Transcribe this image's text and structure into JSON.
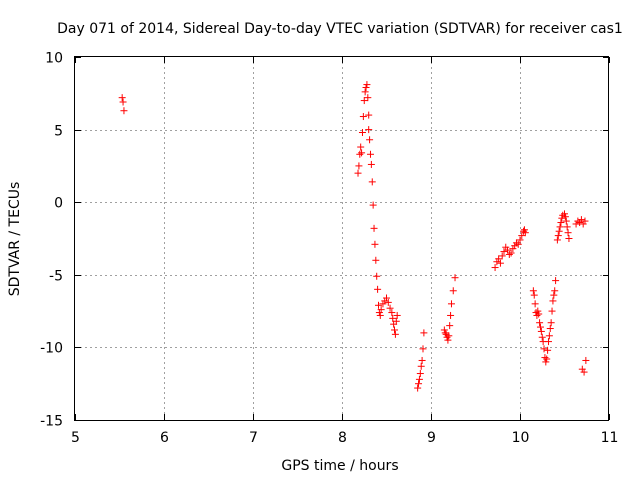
{
  "chart_data": {
    "type": "scatter",
    "title": "Day 071 of 2014, Sidereal Day-to-day VTEC variation (SDTVAR) for receiver cas1",
    "xlabel": "GPS time / hours",
    "ylabel": "SDTVAR / TECUs",
    "xlim": [
      5,
      11
    ],
    "ylim": [
      -15,
      10
    ],
    "xticks": [
      5,
      6,
      7,
      8,
      9,
      10,
      11
    ],
    "yticks": [
      -15,
      -10,
      -5,
      0,
      5,
      10
    ],
    "xtick_labels": [
      "5",
      "6",
      "7",
      "8",
      "9",
      "10",
      "11"
    ],
    "ytick_labels": [
      "-15",
      "-10",
      "-5",
      "0",
      "5",
      "10"
    ],
    "grid": true,
    "marker": "+",
    "color": "#ff0000",
    "series": [
      {
        "name": "cas1",
        "points": [
          [
            5.53,
            7.2
          ],
          [
            5.54,
            6.9
          ],
          [
            5.55,
            6.3
          ],
          [
            8.18,
            2.0
          ],
          [
            8.19,
            2.5
          ],
          [
            8.2,
            3.3
          ],
          [
            8.21,
            3.8
          ],
          [
            8.22,
            3.4
          ],
          [
            8.23,
            4.8
          ],
          [
            8.24,
            5.9
          ],
          [
            8.25,
            7.0
          ],
          [
            8.26,
            7.6
          ],
          [
            8.27,
            7.9
          ],
          [
            8.28,
            8.1
          ],
          [
            8.29,
            7.2
          ],
          [
            8.3,
            6.0
          ],
          [
            8.3,
            5.0
          ],
          [
            8.31,
            4.3
          ],
          [
            8.32,
            3.3
          ],
          [
            8.33,
            2.6
          ],
          [
            8.34,
            1.4
          ],
          [
            8.35,
            -0.2
          ],
          [
            8.36,
            -1.8
          ],
          [
            8.37,
            -2.9
          ],
          [
            8.38,
            -4.0
          ],
          [
            8.39,
            -5.1
          ],
          [
            8.4,
            -6.0
          ],
          [
            8.41,
            -7.1
          ],
          [
            8.42,
            -7.6
          ],
          [
            8.43,
            -7.8
          ],
          [
            8.44,
            -7.4
          ],
          [
            8.46,
            -7.0
          ],
          [
            8.48,
            -6.8
          ],
          [
            8.5,
            -6.6
          ],
          [
            8.52,
            -6.9
          ],
          [
            8.54,
            -7.3
          ],
          [
            8.56,
            -7.6
          ],
          [
            8.57,
            -8.0
          ],
          [
            8.58,
            -8.4
          ],
          [
            8.59,
            -8.8
          ],
          [
            8.6,
            -9.1
          ],
          [
            8.61,
            -8.2
          ],
          [
            8.62,
            -7.8
          ],
          [
            8.85,
            -12.8
          ],
          [
            8.86,
            -12.5
          ],
          [
            8.87,
            -12.2
          ],
          [
            8.88,
            -11.8
          ],
          [
            8.89,
            -11.3
          ],
          [
            8.9,
            -10.9
          ],
          [
            8.91,
            -10.1
          ],
          [
            8.92,
            -9.0
          ],
          [
            9.15,
            -8.8
          ],
          [
            9.16,
            -9.0
          ],
          [
            9.17,
            -9.1
          ],
          [
            9.18,
            -9.3
          ],
          [
            9.19,
            -9.5
          ],
          [
            9.2,
            -9.2
          ],
          [
            9.21,
            -8.5
          ],
          [
            9.22,
            -7.8
          ],
          [
            9.23,
            -7.0
          ],
          [
            9.25,
            -6.1
          ],
          [
            9.27,
            -5.2
          ],
          [
            9.72,
            -4.5
          ],
          [
            9.74,
            -4.1
          ],
          [
            9.76,
            -3.9
          ],
          [
            9.78,
            -4.2
          ],
          [
            9.8,
            -3.7
          ],
          [
            9.82,
            -3.4
          ],
          [
            9.84,
            -3.1
          ],
          [
            9.86,
            -3.3
          ],
          [
            9.88,
            -3.6
          ],
          [
            9.9,
            -3.5
          ],
          [
            9.92,
            -3.2
          ],
          [
            9.94,
            -3.0
          ],
          [
            9.96,
            -2.8
          ],
          [
            9.98,
            -2.9
          ],
          [
            10.0,
            -2.6
          ],
          [
            10.02,
            -2.3
          ],
          [
            10.04,
            -2.0
          ],
          [
            10.05,
            -1.9
          ],
          [
            10.06,
            -2.1
          ],
          [
            10.15,
            -6.1
          ],
          [
            10.16,
            -6.4
          ],
          [
            10.17,
            -7.0
          ],
          [
            10.18,
            -7.6
          ],
          [
            10.19,
            -7.8
          ],
          [
            10.2,
            -7.5
          ],
          [
            10.21,
            -7.7
          ],
          [
            10.22,
            -8.3
          ],
          [
            10.23,
            -8.6
          ],
          [
            10.24,
            -8.9
          ],
          [
            10.25,
            -9.3
          ],
          [
            10.26,
            -9.6
          ],
          [
            10.27,
            -10.1
          ],
          [
            10.28,
            -10.7
          ],
          [
            10.29,
            -11.0
          ],
          [
            10.3,
            -10.8
          ],
          [
            10.31,
            -10.2
          ],
          [
            10.32,
            -9.6
          ],
          [
            10.33,
            -9.2
          ],
          [
            10.34,
            -8.7
          ],
          [
            10.35,
            -8.3
          ],
          [
            10.36,
            -7.5
          ],
          [
            10.37,
            -6.8
          ],
          [
            10.38,
            -6.4
          ],
          [
            10.39,
            -6.1
          ],
          [
            10.4,
            -5.4
          ],
          [
            10.42,
            -2.6
          ],
          [
            10.43,
            -2.3
          ],
          [
            10.44,
            -2.0
          ],
          [
            10.45,
            -1.7
          ],
          [
            10.46,
            -1.4
          ],
          [
            10.47,
            -1.1
          ],
          [
            10.48,
            -0.9
          ],
          [
            10.5,
            -0.8
          ],
          [
            10.51,
            -1.0
          ],
          [
            10.52,
            -1.3
          ],
          [
            10.53,
            -1.7
          ],
          [
            10.54,
            -2.1
          ],
          [
            10.55,
            -2.5
          ],
          [
            10.63,
            -1.5
          ],
          [
            10.65,
            -1.3
          ],
          [
            10.67,
            -1.4
          ],
          [
            10.69,
            -1.2
          ],
          [
            10.71,
            -1.5
          ],
          [
            10.73,
            -1.3
          ],
          [
            10.7,
            -11.5
          ],
          [
            10.72,
            -11.7
          ],
          [
            10.74,
            -10.9
          ]
        ]
      }
    ]
  }
}
